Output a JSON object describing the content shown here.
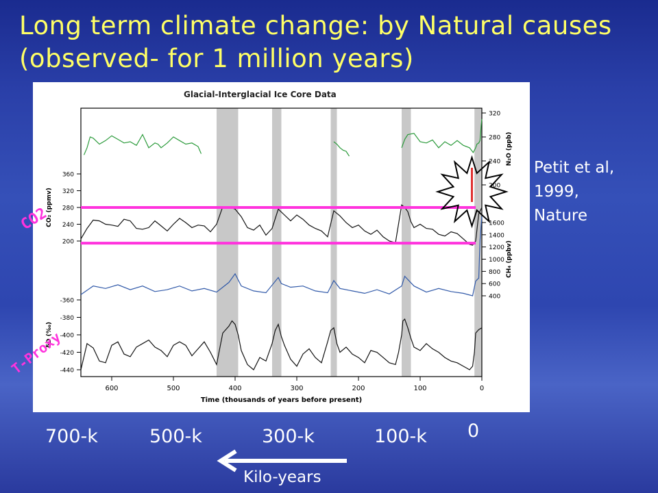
{
  "slide": {
    "title_line1": "Long term climate change: by Natural causes",
    "title_line2": "(observed- for 1 million years)",
    "citation_line1": "Petit et al,",
    "citation_line2": "1999,",
    "citation_line3": "Nature",
    "co2_label": "CO2",
    "tproxy_label": "T-Proxy",
    "bottom_ticks": [
      "700-k",
      "500-k",
      "300-k",
      "100-k",
      "0"
    ],
    "kilo_years": "Kilo-years",
    "colors": {
      "title": "#ffff66",
      "annotation_magenta": "#ff33dd",
      "background": "#2a3fa8"
    }
  },
  "chart_data": {
    "type": "line",
    "title": "Glacial-Interglacial Ice Core Data",
    "xlabel": "Time (thousands of years before present)",
    "xlim": [
      650,
      0
    ],
    "x_ticks": [
      600,
      500,
      400,
      300,
      200,
      100,
      0
    ],
    "shaded_interglacials": [
      [
        430,
        395
      ],
      [
        340,
        325
      ],
      [
        245,
        235
      ],
      [
        130,
        115
      ],
      [
        12,
        0
      ]
    ],
    "series": [
      {
        "name": "N₂O (ppb)",
        "color": "#2a9a3a",
        "axis": "right",
        "ticks": [
          200,
          240,
          280,
          320
        ],
        "x": [
          645,
          640,
          635,
          630,
          620,
          610,
          600,
          590,
          580,
          570,
          560,
          550,
          540,
          530,
          525,
          520,
          510,
          500,
          490,
          480,
          470,
          460,
          455,
          240,
          235,
          230,
          225,
          220,
          215,
          130,
          125,
          120,
          110,
          100,
          90,
          80,
          70,
          60,
          50,
          40,
          30,
          20,
          14,
          10,
          8,
          5,
          3,
          1,
          0
        ],
        "y": [
          250,
          262,
          280,
          278,
          268,
          274,
          282,
          276,
          270,
          272,
          266,
          284,
          262,
          270,
          268,
          262,
          270,
          280,
          274,
          268,
          270,
          264,
          252,
          272,
          268,
          262,
          258,
          256,
          248,
          262,
          276,
          284,
          286,
          272,
          270,
          275,
          262,
          272,
          266,
          274,
          266,
          262,
          254,
          262,
          268,
          270,
          274,
          300,
          310
        ]
      },
      {
        "name": "CO₂ (ppmv)",
        "color": "#111111",
        "axis": "left",
        "ticks": [
          200,
          240,
          280,
          320,
          360
        ],
        "x": [
          650,
          640,
          630,
          620,
          610,
          600,
          590,
          580,
          570,
          560,
          550,
          540,
          530,
          520,
          510,
          500,
          490,
          480,
          470,
          460,
          450,
          440,
          430,
          420,
          410,
          400,
          390,
          380,
          370,
          360,
          350,
          340,
          330,
          320,
          310,
          300,
          290,
          280,
          270,
          260,
          250,
          240,
          230,
          220,
          210,
          200,
          190,
          180,
          170,
          160,
          150,
          140,
          130,
          125,
          120,
          115,
          110,
          100,
          90,
          80,
          70,
          60,
          50,
          40,
          30,
          20,
          15,
          10,
          5,
          0
        ],
        "y": [
          205,
          230,
          250,
          248,
          240,
          238,
          235,
          252,
          248,
          230,
          228,
          232,
          248,
          236,
          224,
          240,
          254,
          244,
          232,
          238,
          236,
          222,
          240,
          282,
          282,
          276,
          258,
          232,
          226,
          238,
          214,
          230,
          276,
          262,
          248,
          262,
          252,
          238,
          230,
          224,
          210,
          272,
          260,
          244,
          232,
          238,
          224,
          216,
          226,
          210,
          200,
          196,
          286,
          280,
          270,
          246,
          232,
          240,
          230,
          228,
          216,
          212,
          222,
          218,
          205,
          192,
          190,
          200,
          265,
          280
        ]
      },
      {
        "name": "CH₄ (ppbv)",
        "color": "#2f58a8",
        "axis": "right",
        "ticks": [
          400,
          600,
          800,
          1000,
          1200,
          1400,
          1600
        ],
        "x": [
          650,
          630,
          610,
          590,
          570,
          550,
          530,
          510,
          490,
          470,
          450,
          430,
          410,
          400,
          390,
          370,
          350,
          330,
          325,
          310,
          290,
          270,
          250,
          240,
          230,
          210,
          190,
          170,
          150,
          130,
          125,
          110,
          90,
          70,
          50,
          30,
          15,
          10,
          5,
          3,
          0
        ],
        "y": [
          420,
          560,
          520,
          580,
          500,
          560,
          470,
          500,
          560,
          480,
          520,
          460,
          620,
          760,
          560,
          480,
          450,
          700,
          600,
          540,
          560,
          480,
          450,
          650,
          520,
          480,
          440,
          500,
          430,
          560,
          720,
          560,
          460,
          520,
          470,
          440,
          400,
          640,
          690,
          1300,
          1700
        ]
      },
      {
        "name": "δD (‰)",
        "color": "#111111",
        "axis": "left",
        "ticks": [
          -440,
          -420,
          -400,
          -380,
          -360
        ],
        "x": [
          650,
          640,
          630,
          620,
          610,
          600,
          590,
          580,
          570,
          560,
          550,
          540,
          530,
          520,
          510,
          500,
          490,
          480,
          470,
          460,
          450,
          440,
          430,
          420,
          410,
          405,
          400,
          395,
          390,
          380,
          370,
          360,
          350,
          340,
          335,
          330,
          325,
          320,
          310,
          300,
          290,
          280,
          270,
          260,
          250,
          245,
          240,
          235,
          230,
          220,
          210,
          200,
          190,
          180,
          170,
          160,
          150,
          140,
          135,
          130,
          128,
          125,
          120,
          115,
          110,
          100,
          90,
          80,
          70,
          60,
          50,
          40,
          30,
          25,
          20,
          15,
          12,
          10,
          5,
          0
        ],
        "y": [
          -440,
          -410,
          -415,
          -430,
          -432,
          -412,
          -408,
          -422,
          -425,
          -414,
          -410,
          -406,
          -414,
          -418,
          -425,
          -412,
          -408,
          -412,
          -424,
          -416,
          -408,
          -420,
          -434,
          -398,
          -390,
          -384,
          -388,
          -400,
          -418,
          -434,
          -440,
          -426,
          -430,
          -410,
          -395,
          -388,
          -402,
          -412,
          -428,
          -436,
          -422,
          -416,
          -426,
          -432,
          -408,
          -395,
          -392,
          -410,
          -420,
          -414,
          -422,
          -426,
          -432,
          -418,
          -420,
          -426,
          -432,
          -434,
          -420,
          -400,
          -384,
          -382,
          -392,
          -404,
          -414,
          -418,
          -410,
          -416,
          -420,
          -426,
          -430,
          -432,
          -436,
          -438,
          -440,
          -436,
          -420,
          -398,
          -394,
          -392
        ]
      }
    ],
    "annotations": [
      {
        "type": "hline",
        "series": "CO₂ (ppmv)",
        "value": 280,
        "from_x": 650,
        "to_x": 10,
        "color": "#ff33dd"
      },
      {
        "type": "hline",
        "series": "CO₂ (ppmv)",
        "value": 195,
        "from_x": 650,
        "to_x": 10,
        "color": "#ff33dd"
      },
      {
        "type": "starburst",
        "near_x": 5,
        "note": ""
      }
    ]
  }
}
